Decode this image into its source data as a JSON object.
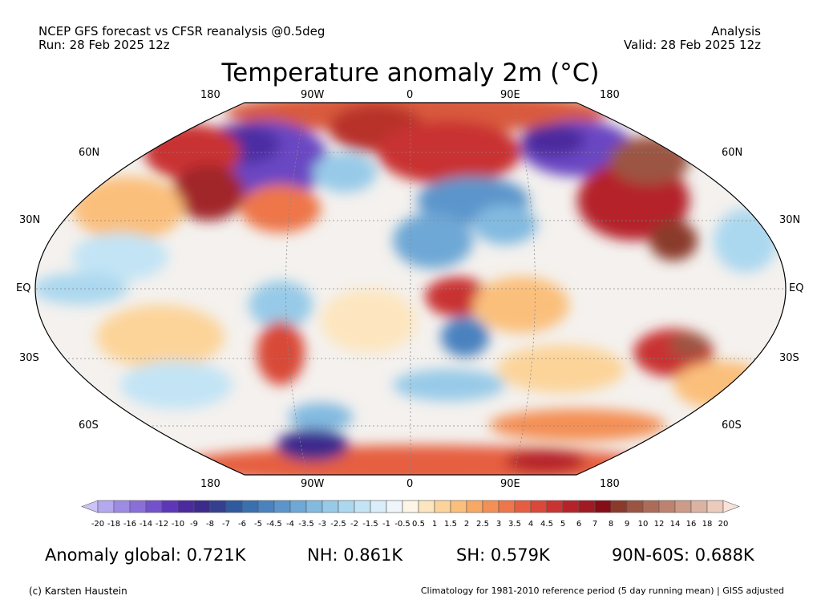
{
  "header": {
    "left_line1": "NCEP GFS forecast vs CFSR reanalysis @0.5deg",
    "left_line2": "Run: 28 Feb 2025 12z",
    "right_line1": "Analysis",
    "right_line2": "Valid: 28 Feb 2025 12z"
  },
  "title": "Temperature anomaly 2m (°C)",
  "axes": {
    "lon_top": [
      "180",
      "90W",
      "0",
      "90E",
      "180"
    ],
    "lon_bottom": [
      "180",
      "90W",
      "0",
      "90E",
      "180"
    ],
    "lat_left": [
      "60N",
      "30N",
      "EQ",
      "30S",
      "60S"
    ],
    "lat_right": [
      "60N",
      "30N",
      "EQ",
      "30S",
      "60S"
    ]
  },
  "colorbar": {
    "ticks": [
      "-20",
      "-18",
      "-16",
      "-14",
      "-12",
      "-10",
      "-9",
      "-8",
      "-7",
      "-6",
      "-5",
      "-4.5",
      "-4",
      "-3.5",
      "-3",
      "-2.5",
      "-2",
      "-1.5",
      "-1",
      "-0.5",
      "0.5",
      "1",
      "1.5",
      "2",
      "2.5",
      "3",
      "3.5",
      "4",
      "4.5",
      "5",
      "6",
      "7",
      "8",
      "9",
      "10",
      "12",
      "14",
      "16",
      "18",
      "20"
    ],
    "colors": [
      "#c9c4f5",
      "#b4a9ef",
      "#9e8be4",
      "#8a6fd8",
      "#7452cb",
      "#5e37b8",
      "#4b2a9e",
      "#3c2b8c",
      "#34408f",
      "#2f5aa0",
      "#3a6fb0",
      "#4a82bf",
      "#5b95cb",
      "#6ea8d6",
      "#82bae0",
      "#97cae8",
      "#acd8ef",
      "#c2e4f5",
      "#d9eef9",
      "#eef6fb",
      "#fdf5e6",
      "#fde6bf",
      "#fcd49a",
      "#fbbf7c",
      "#f8a865",
      "#f48f55",
      "#ee764a",
      "#e65e41",
      "#d94839",
      "#c93331",
      "#b5232a",
      "#a11922",
      "#860c17",
      "#8a3a2a",
      "#9c5442",
      "#ad6c59",
      "#bd8370",
      "#cd9b88",
      "#dcb3a2",
      "#eccbbd",
      "#f8e3da"
    ]
  },
  "stats": {
    "global": "Anomaly global: 0.721K",
    "nh": "NH: 0.861K",
    "sh": "SH: 0.579K",
    "arctic": "90N-60S: 0.688K"
  },
  "footer": {
    "left": "(c) Karsten Haustein",
    "right": "Climatology for 1981-2010 reference period (5 day running mean) | GISS adjusted"
  }
}
